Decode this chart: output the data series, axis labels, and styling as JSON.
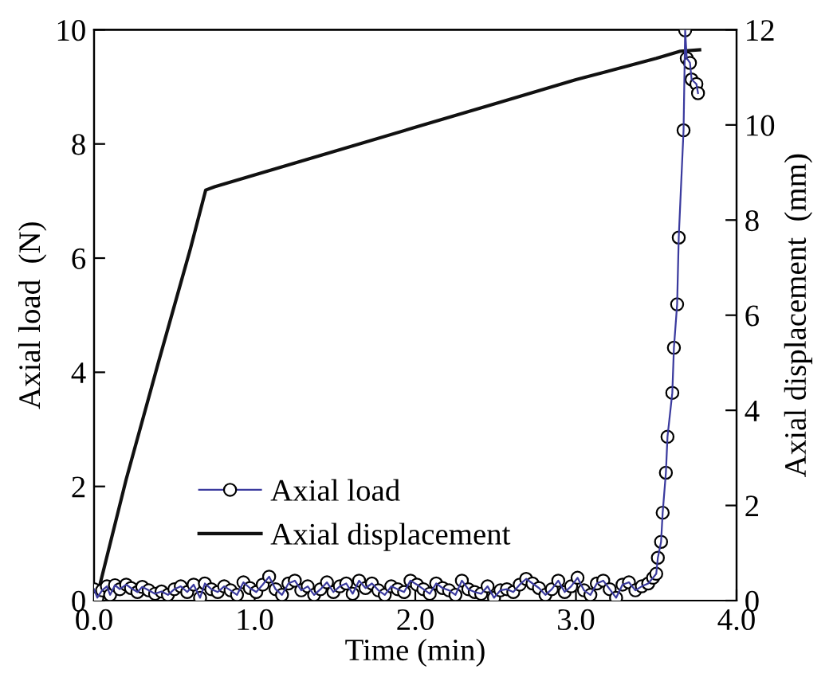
{
  "chart_data": {
    "type": "line",
    "xlabel": "Time (min)",
    "ylabel": "Axial load  (N)",
    "y2label": "Axial displacement  (mm)",
    "xlim": [
      0,
      4
    ],
    "xticks": [
      {
        "value": 0,
        "label": "0.0"
      },
      {
        "value": 1,
        "label": "1.0"
      },
      {
        "value": 2,
        "label": "2.0"
      },
      {
        "value": 3,
        "label": "3.0"
      },
      {
        "value": 4,
        "label": "4.0"
      }
    ],
    "ylim": [
      0,
      10
    ],
    "yticks": [
      0,
      2,
      4,
      6,
      8,
      10
    ],
    "y2lim": [
      0,
      12
    ],
    "y2ticks": [
      0,
      2,
      4,
      6,
      8,
      10,
      12
    ],
    "legend": "center left",
    "grid": false,
    "series": [
      {
        "name": "Axial load",
        "color": "#3a3a9e",
        "marker": "circle",
        "x": [
          0.0,
          0.02,
          0.05,
          0.08,
          0.1,
          0.13,
          0.16,
          0.2,
          0.23,
          0.27,
          0.3,
          0.34,
          0.38,
          0.42,
          0.46,
          0.5,
          0.54,
          0.58,
          0.62,
          0.66,
          0.69,
          0.73,
          0.77,
          0.81,
          0.85,
          0.89,
          0.93,
          0.97,
          1.01,
          1.05,
          1.09,
          1.13,
          1.17,
          1.21,
          1.25,
          1.29,
          1.33,
          1.37,
          1.41,
          1.45,
          1.49,
          1.53,
          1.57,
          1.61,
          1.65,
          1.69,
          1.73,
          1.77,
          1.81,
          1.85,
          1.89,
          1.93,
          1.97,
          2.01,
          2.05,
          2.09,
          2.13,
          2.17,
          2.21,
          2.25,
          2.29,
          2.33,
          2.37,
          2.41,
          2.45,
          2.49,
          2.53,
          2.57,
          2.61,
          2.65,
          2.69,
          2.73,
          2.77,
          2.81,
          2.85,
          2.89,
          2.93,
          2.97,
          3.01,
          3.05,
          3.09,
          3.13,
          3.17,
          3.21,
          3.25,
          3.29,
          3.33,
          3.37,
          3.41,
          3.45,
          3.48,
          3.5,
          3.51,
          3.53,
          3.54,
          3.56,
          3.57,
          3.6,
          3.61,
          3.63,
          3.64,
          3.67,
          3.68,
          3.69,
          3.71,
          3.72,
          3.75,
          3.76
        ],
        "values": [
          0.2,
          0.05,
          0.18,
          0.25,
          0.1,
          0.27,
          0.2,
          0.28,
          0.22,
          0.15,
          0.24,
          0.18,
          0.12,
          0.16,
          0.1,
          0.2,
          0.25,
          0.15,
          0.28,
          0.05,
          0.3,
          0.2,
          0.15,
          0.25,
          0.18,
          0.1,
          0.32,
          0.22,
          0.15,
          0.28,
          0.42,
          0.2,
          0.1,
          0.3,
          0.35,
          0.18,
          0.25,
          0.1,
          0.2,
          0.32,
          0.15,
          0.25,
          0.3,
          0.12,
          0.35,
          0.22,
          0.3,
          0.18,
          0.1,
          0.25,
          0.2,
          0.15,
          0.35,
          0.28,
          0.2,
          0.12,
          0.3,
          0.22,
          0.18,
          0.1,
          0.35,
          0.2,
          0.15,
          0.12,
          0.25,
          0.05,
          0.18,
          0.2,
          0.15,
          0.28,
          0.38,
          0.3,
          0.22,
          0.1,
          0.2,
          0.35,
          0.15,
          0.25,
          0.4,
          0.18,
          0.1,
          0.3,
          0.35,
          0.2,
          0.05,
          0.28,
          0.32,
          0.18,
          0.25,
          0.3,
          0.4,
          0.47,
          0.75,
          1.03,
          1.54,
          2.24,
          2.87,
          3.64,
          4.43,
          5.19,
          6.36,
          8.24,
          9.99,
          9.5,
          9.42,
          9.13,
          9.05,
          8.89
        ]
      },
      {
        "name": "Axial displacement",
        "color": "#111111",
        "marker": "none",
        "axis": "y2",
        "x": [
          0.017,
          0.2,
          0.4,
          0.6,
          0.695,
          0.75,
          1.5,
          2.0,
          2.5,
          3.0,
          3.5,
          3.65,
          3.77
        ],
        "values": [
          0.07,
          2.55,
          5.0,
          7.4,
          8.63,
          8.7,
          9.45,
          9.95,
          10.45,
          10.95,
          11.4,
          11.55,
          11.58
        ]
      }
    ]
  }
}
